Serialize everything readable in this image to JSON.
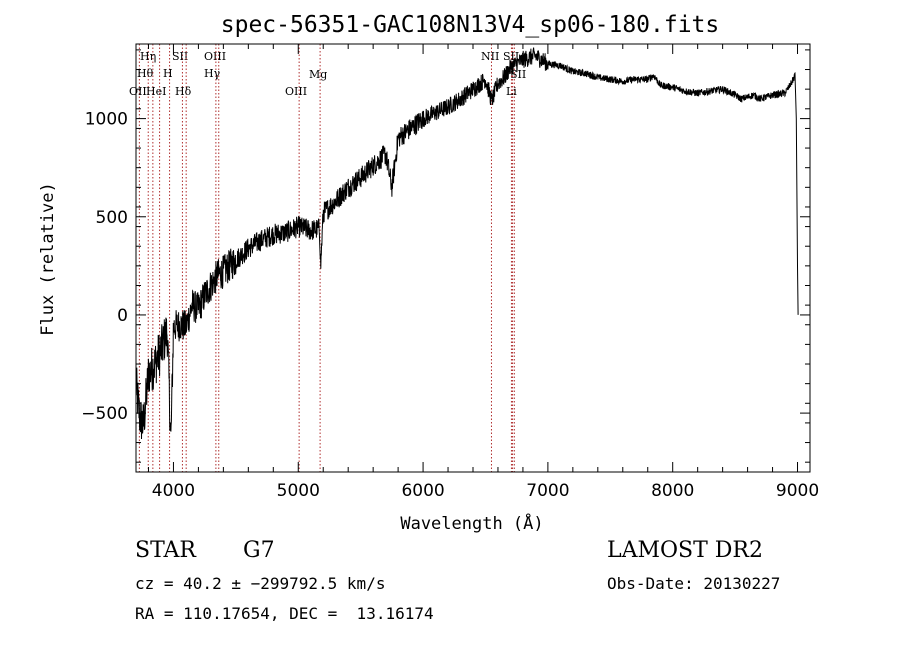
{
  "chart_data": {
    "type": "line",
    "title": "spec-56351-GAC108N13V4_sp06-180.fits",
    "xlabel": "Wavelength (Å)",
    "ylabel": "Flux (relative)",
    "xlim": [
      3700,
      9100
    ],
    "ylim": [
      -800,
      1380
    ],
    "x_ticks": [
      4000,
      5000,
      6000,
      7000,
      8000,
      9000
    ],
    "x_tick_labels": [
      "4000",
      "5000",
      "6000",
      "7000",
      "8000",
      "9000"
    ],
    "y_ticks": [
      -500,
      0,
      500,
      1000
    ],
    "y_tick_labels": [
      "−500",
      "0",
      "500",
      "1000"
    ],
    "grid": false,
    "series": [
      {
        "x": [
          3700,
          3730,
          3760,
          3800,
          3850,
          3900,
          3950,
          3980,
          4000,
          4050,
          4100,
          4150,
          4200,
          4250,
          4300,
          4350,
          4400,
          4500,
          4600,
          4700,
          4800,
          4900,
          5000,
          5100,
          5170,
          5180,
          5200,
          5300,
          5400,
          5500,
          5600,
          5700,
          5750,
          5800,
          5900,
          6000,
          6100,
          6200,
          6300,
          6400,
          6500,
          6550,
          6600,
          6650,
          6700,
          6750,
          6800,
          6850,
          6900,
          7000,
          7100,
          7200,
          7300,
          7400,
          7500,
          7600,
          7700,
          7800,
          7850,
          7900,
          8000,
          8100,
          8200,
          8300,
          8400,
          8500,
          8550,
          8600,
          8650,
          8700,
          8800,
          8900,
          8950,
          8980,
          8990,
          9000,
          9005
        ],
        "y": [
          -350,
          -520,
          -560,
          -300,
          -250,
          -180,
          -80,
          -650,
          -60,
          -50,
          -60,
          50,
          30,
          100,
          150,
          200,
          220,
          280,
          340,
          380,
          410,
          420,
          450,
          430,
          440,
          250,
          520,
          580,
          650,
          700,
          760,
          820,
          650,
          900,
          950,
          1000,
          1030,
          1060,
          1100,
          1150,
          1200,
          1090,
          1180,
          1210,
          1260,
          1280,
          1300,
          1310,
          1320,
          1280,
          1270,
          1240,
          1230,
          1210,
          1200,
          1190,
          1200,
          1200,
          1220,
          1170,
          1160,
          1140,
          1130,
          1140,
          1150,
          1120,
          1100,
          1110,
          1120,
          1100,
          1120,
          1130,
          1180,
          1220,
          1000,
          250,
          0
        ]
      }
    ],
    "lines_left": [
      {
        "label": "OII",
        "wl": 3727
      },
      {
        "label": "Hθ",
        "wl": 3798
      },
      {
        "label": "Hη",
        "wl": 3835
      },
      {
        "label": "HeI",
        "wl": 3889
      },
      {
        "label": "SII",
        "wl": 4072
      },
      {
        "label": "H",
        "wl": 3969
      },
      {
        "label": "Hδ",
        "wl": 4102
      },
      {
        "label": "OIII",
        "wl": 4363
      },
      {
        "label": "Hγ",
        "wl": 4340
      },
      {
        "label": "OIII",
        "wl": 5007
      },
      {
        "label": "Mg",
        "wl": 5175
      }
    ],
    "lines_right": [
      {
        "label": "NII",
        "wl": 6548
      },
      {
        "label": "SII",
        "wl": 6717
      },
      {
        "label": "SII",
        "wl": 6731
      },
      {
        "label": "Li",
        "wl": 6708
      }
    ]
  },
  "info": {
    "object_class": "STAR",
    "subclass": "G7",
    "survey": "LAMOST DR2",
    "cz": "cz = 40.2 ± −299792.5 km/s",
    "obs_date": "Obs-Date: 20130227",
    "coords": "RA = 110.17654, DEC =  13.16174"
  }
}
